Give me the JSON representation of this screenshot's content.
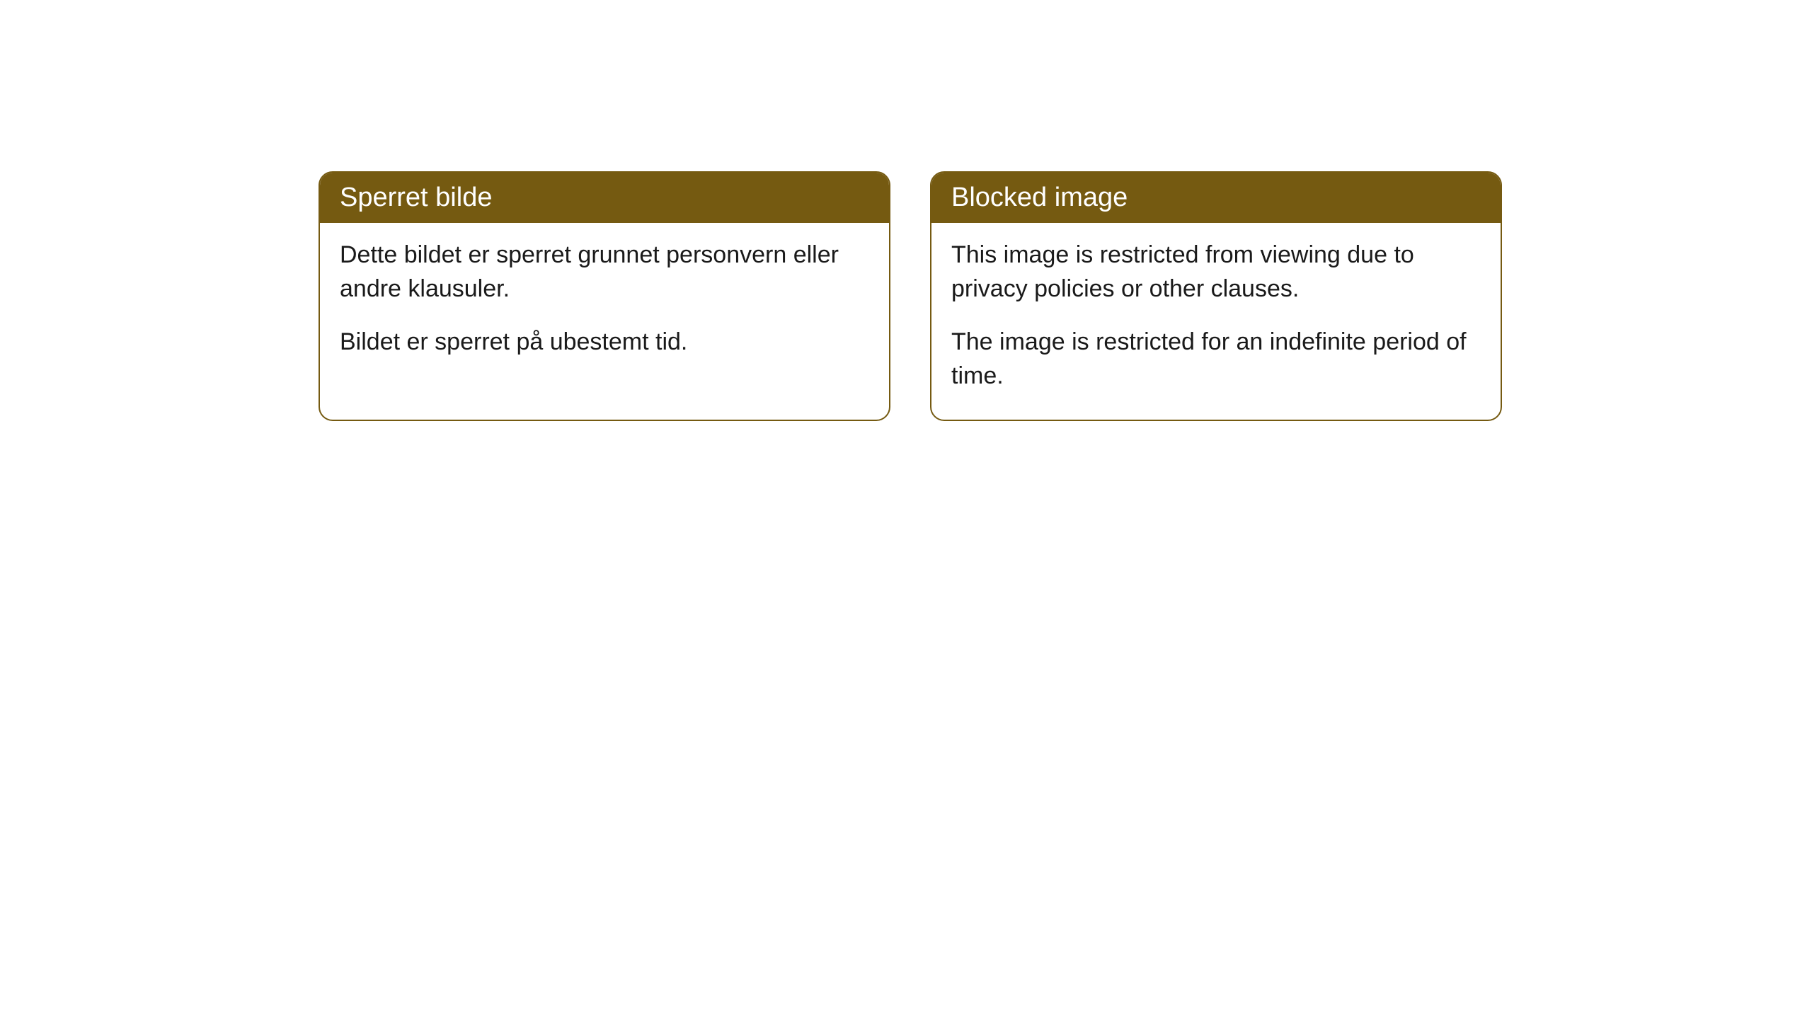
{
  "cards": [
    {
      "title": "Sperret bilde",
      "paragraph1": "Dette bildet er sperret grunnet personvern eller andre klausuler.",
      "paragraph2": "Bildet er sperret på ubestemt tid."
    },
    {
      "title": "Blocked image",
      "paragraph1": "This image is restricted from viewing due to privacy policies or other clauses.",
      "paragraph2": "The image is restricted for an indefinite period of time."
    }
  ],
  "styling": {
    "header_background": "#755a11",
    "header_text_color": "#ffffff",
    "border_color": "#755a11",
    "body_background": "#ffffff",
    "body_text_color": "#1a1a1a",
    "border_radius": 20,
    "title_fontsize": 38,
    "body_fontsize": 34
  }
}
